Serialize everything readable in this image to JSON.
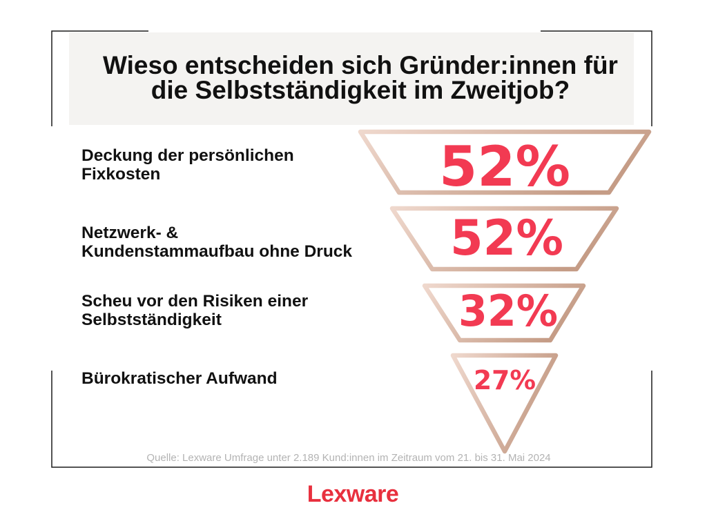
{
  "colors": {
    "accent": "#f23a52",
    "logo": "#e8303e",
    "title_background": "#f4f3f1",
    "funnel_light": "#efd8cd",
    "funnel_dark": "#c59c86",
    "frame": "#1a1a1a",
    "source_text": "#b3b3b3"
  },
  "chart_data": {
    "type": "bar",
    "title": "Wieso entscheiden sich Gründer:innen für die Selbstständigkeit im Zweitjob?",
    "categories": [
      "Deckung der persönlichen\nFixkosten",
      "Netzwerk- &\nKundenstammaufbau ohne Druck",
      "Scheu vor den Risiken einer\nSelbstständigkeit",
      "Bürokratischer Aufwand"
    ],
    "values": [
      52,
      52,
      32,
      27
    ],
    "labels": [
      "52%",
      "52%",
      "32%",
      "27%"
    ],
    "grid": false
  },
  "source": "Quelle: Lexware Umfrage unter 2.189 Kund:innen im Zeitraum vom 21. bis 31. Mai 2024",
  "logo": "Lexware"
}
